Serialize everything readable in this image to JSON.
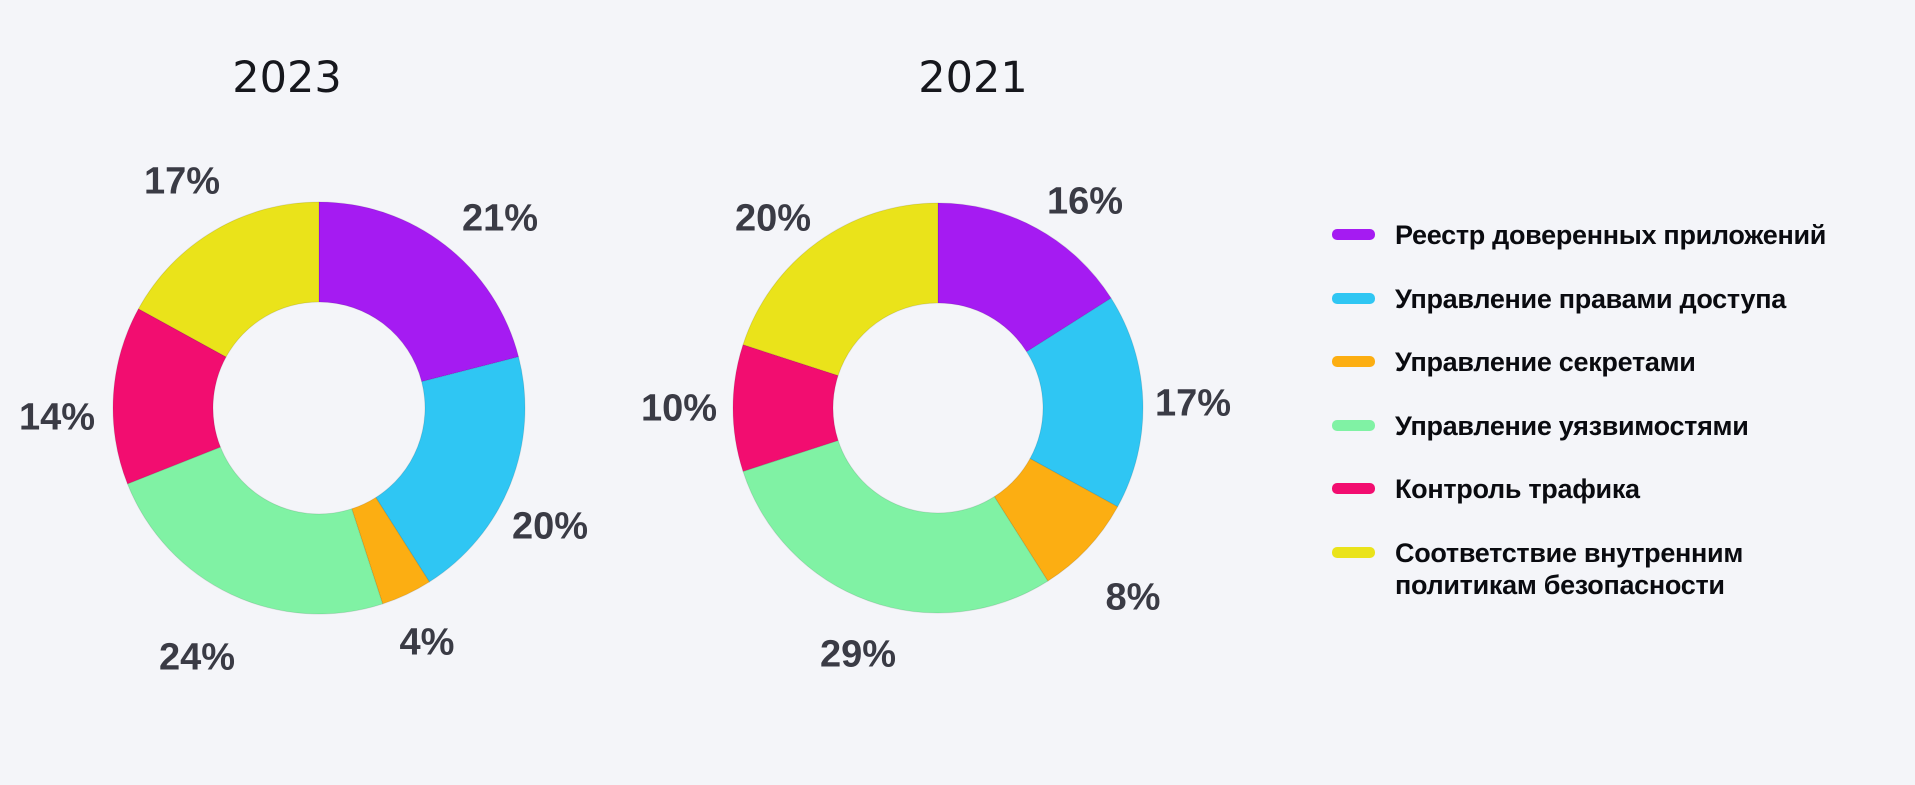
{
  "background": "#F4F5F9",
  "chart_data": {
    "type": "pie",
    "donut": true,
    "legend_position": "right",
    "categories": [
      "Реестр доверенных приложений",
      "Управление правами доступа",
      "Управление секретами",
      "Управление уязвимостями",
      "Контроль трафика",
      "Соответствие внутренним политикам безопасности"
    ],
    "colors": [
      "#A51BF2",
      "#2FC6F3",
      "#FCAE12",
      "#80F2A4",
      "#F20D70",
      "#EAE31A"
    ],
    "charts": [
      {
        "title": "2023",
        "values": [
          21,
          20,
          4,
          24,
          14,
          17
        ],
        "labels": [
          "21%",
          "20%",
          "4%",
          "24%",
          "14%",
          "17%"
        ]
      },
      {
        "title": "2021",
        "values": [
          16,
          17,
          8,
          29,
          10,
          20
        ],
        "labels": [
          "16%",
          "17%",
          "8%",
          "29%",
          "10%",
          "20%"
        ]
      }
    ]
  },
  "text_colors": {
    "title": "#16171D",
    "percent_label": "#3A3B45",
    "legend": "#0A0B10"
  }
}
